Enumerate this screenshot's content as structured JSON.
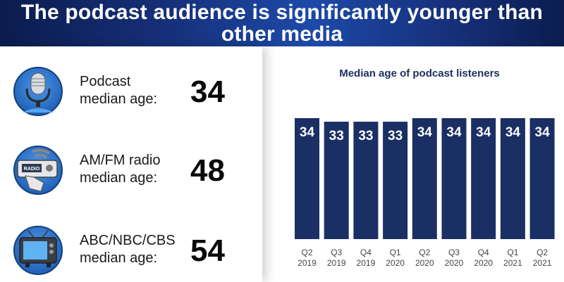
{
  "header": {
    "title": "The podcast audience is significantly younger than other media"
  },
  "stats": [
    {
      "icon": "microphone-icon",
      "label": "Podcast\nmedian age:",
      "value": "34"
    },
    {
      "icon": "radio-icon",
      "label": "AM/FM radio\nmedian age:",
      "value": "48"
    },
    {
      "icon": "tv-icon",
      "label": "ABC/NBC/CBS\nmedian age:",
      "value": "54"
    }
  ],
  "radio_icon_text": "RADIO",
  "colors": {
    "bar": "#1a2f63",
    "icon_circle": "#2e7bd6",
    "header": "#16307a"
  },
  "chart_data": {
    "type": "bar",
    "title": "Median age of podcast listeners",
    "categories": [
      "Q2 2019",
      "Q3 2019",
      "Q4 2019",
      "Q1 2020",
      "Q2 2020",
      "Q3 2020",
      "Q4 2020",
      "Q1 2021",
      "Q2 2021"
    ],
    "values": [
      34,
      33,
      33,
      33,
      34,
      34,
      34,
      34,
      34
    ],
    "ylim": [
      0,
      34
    ],
    "grid": false,
    "data_labels": true
  }
}
